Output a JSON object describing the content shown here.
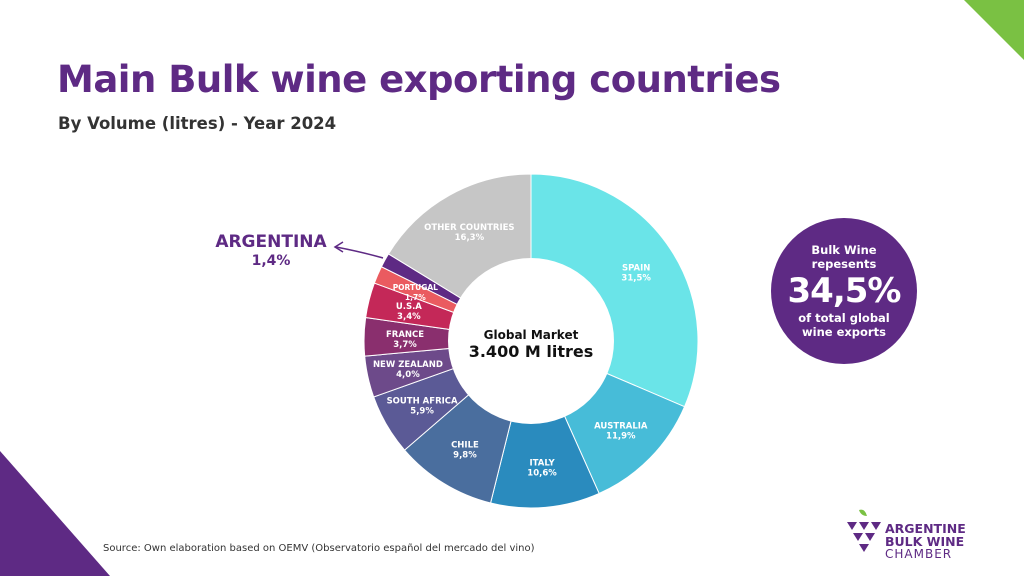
{
  "header": {
    "title": "Main Bulk wine exporting countries",
    "subtitle": "By Volume (litres) - Year 2024"
  },
  "chart_data": {
    "type": "pie",
    "title": "Main Bulk wine exporting countries",
    "subtitle": "By Volume (litres) - Year 2024",
    "center_label": "Global Market",
    "center_value": "3.400 M litres",
    "unit": "%",
    "slices": [
      {
        "label": "SPAIN",
        "value": 31.5,
        "value_label": "31,5%",
        "color": "#6ae4e8"
      },
      {
        "label": "AUSTRALIA",
        "value": 11.9,
        "value_label": "11,9%",
        "color": "#47bcd8"
      },
      {
        "label": "ITALY",
        "value": 10.6,
        "value_label": "10,6%",
        "color": "#2a8bbe"
      },
      {
        "label": "CHILE",
        "value": 9.8,
        "value_label": "9,8%",
        "color": "#4a6e9e"
      },
      {
        "label": "SOUTH AFRICA",
        "value": 5.9,
        "value_label": "5,9%",
        "color": "#5b5a96"
      },
      {
        "label": "NEW ZEALAND",
        "value": 4.0,
        "value_label": "4,0%",
        "color": "#6d4a8a"
      },
      {
        "label": "FRANCE",
        "value": 3.7,
        "value_label": "3,7%",
        "color": "#8a2f6e"
      },
      {
        "label": "U.S.A",
        "value": 3.4,
        "value_label": "3,4%",
        "color": "#c42858"
      },
      {
        "label": "PORTUGAL",
        "value": 1.7,
        "value_label": "1,7%",
        "color": "#ea5b60"
      },
      {
        "label": "ARGENTINA",
        "value": 1.4,
        "value_label": "1,4%",
        "color": "#5e2a84"
      },
      {
        "label": "OTHER COUNTRIES",
        "value": 16.3,
        "value_label": "16,3%",
        "color": "#c6c6c6"
      }
    ]
  },
  "callout": {
    "line1": "Bulk Wine",
    "line2": "repesents",
    "big": "34,5%",
    "line3": "of total global",
    "line4": "wine exports"
  },
  "argentina": {
    "name": "ARGENTINA",
    "value": "1,4%"
  },
  "source": "Source: Own elaboration based on OEMV (Observatorio español del mercado del vino)",
  "logo": {
    "line1": "ARGENTINE",
    "line2": "BULK WINE",
    "line3": "CHAMBER"
  },
  "colors": {
    "brand_purple": "#5e2a84",
    "accent_green": "#7ac143"
  }
}
